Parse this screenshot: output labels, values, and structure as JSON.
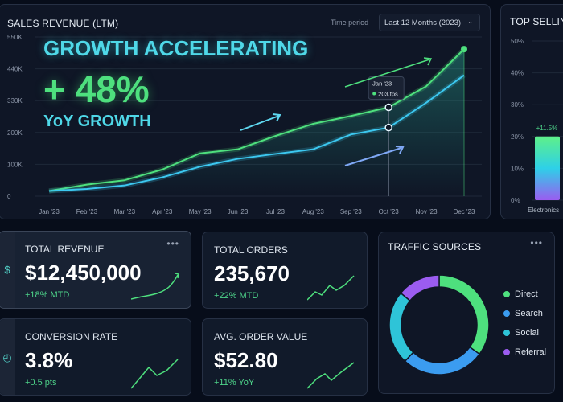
{
  "main": {
    "title": "SALES REVENUE (LTM)",
    "time_period_label": "Time period",
    "time_period_value": "Last 12 Months (2023)",
    "headline": "GROWTH ACCELERATING",
    "big_stat": "+ 48%",
    "big_stat_label": "YoY GROWTH",
    "tooltip": {
      "title": "Jan '23",
      "value": "203.fps"
    }
  },
  "chart_data": [
    {
      "type": "line",
      "title": "SALES REVENUE (LTM)",
      "categories": [
        "Jan '23",
        "Feb '23",
        "Mar '23",
        "Apr '23",
        "May '23",
        "Jun '23",
        "Jul '23",
        "Aug '23",
        "Sep '23",
        "Oct '23",
        "Nov '23",
        "Dec '23"
      ],
      "ytick_labels": [
        "0",
        "100K",
        "200K",
        "330K",
        "440K",
        "550K"
      ],
      "ylim": [
        0,
        550
      ],
      "grid": true,
      "series": [
        {
          "color": "#4ee07e",
          "values": [
            18,
            40,
            55,
            92,
            148,
            162,
            208,
            250,
            277,
            307,
            380,
            508
          ]
        },
        {
          "color": "#3cc8f0",
          "values": [
            18,
            25,
            37,
            65,
            102,
            129,
            146,
            162,
            213,
            237,
            323,
            418
          ]
        }
      ],
      "highlight_category": "Oct '23"
    },
    {
      "type": "bar",
      "title": "TOP SELLIN",
      "categories": [
        "Electronics"
      ],
      "values": [
        20
      ],
      "data_labels": [
        "+11.5%"
      ],
      "ytick_labels": [
        "0%",
        "10%",
        "20%",
        "30%",
        "40%",
        "50%"
      ],
      "ylim": [
        0,
        50
      ]
    },
    {
      "type": "pie",
      "title": "TRAFFIC SOURCES",
      "categories": [
        "Direct",
        "Search",
        "Social",
        "Referral"
      ],
      "values": [
        35,
        27,
        24,
        14
      ],
      "colors": [
        "#4ee07e",
        "#3b9cf0",
        "#2ec4d8",
        "#9b5cf0"
      ]
    }
  ],
  "cards": [
    {
      "label": "TOTAL REVENUE",
      "value": "$12,450,000",
      "change": "+18% MTD",
      "icon": "dollar-icon"
    },
    {
      "label": "TOTAL ORDERS",
      "value": "235,670",
      "change": "+22% MTD"
    },
    {
      "label": "CONVERSION RATE",
      "value": "3.8%",
      "change": "+0.5 pts",
      "icon": "gauge-icon"
    },
    {
      "label": "AVG. ORDER VALUE",
      "value": "$52.80",
      "change": "+11% YoY"
    }
  ],
  "traffic": {
    "title": "TRAFFIC SOURCES"
  },
  "icons": {
    "more": "•••",
    "dollar": "$",
    "gauge": "◴",
    "chevron": "⌄"
  }
}
